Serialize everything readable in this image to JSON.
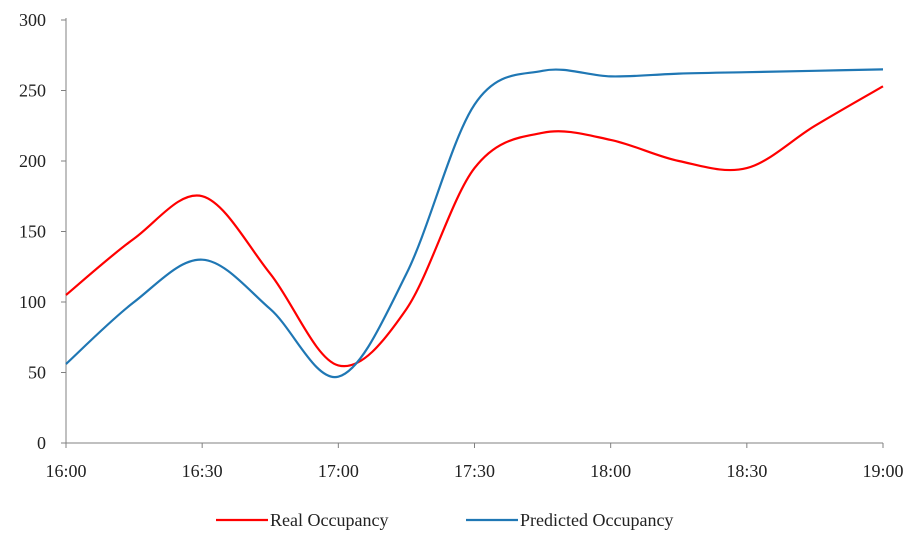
{
  "chart_data": {
    "type": "line",
    "x": [
      "16:00",
      "16:15",
      "16:30",
      "16:45",
      "17:00",
      "17:15",
      "17:30",
      "17:45",
      "18:00",
      "18:15",
      "18:30",
      "18:45",
      "19:00"
    ],
    "x_ticks": [
      "16:00",
      "16:30",
      "17:00",
      "17:30",
      "18:00",
      "18:30",
      "19:00"
    ],
    "y_ticks": [
      0,
      50,
      100,
      150,
      200,
      250,
      300
    ],
    "ylim": [
      0,
      300
    ],
    "grid": false,
    "legend_position": "bottom",
    "series": [
      {
        "name": "Real Occupancy",
        "color": "#ff0000",
        "values": [
          105,
          145,
          175,
          120,
          55,
          95,
          195,
          220,
          215,
          200,
          195,
          225,
          253
        ]
      },
      {
        "name": "Predicted Occupancy",
        "color": "#1f77b4",
        "values": [
          56,
          100,
          130,
          95,
          47,
          120,
          240,
          264,
          260,
          262,
          263,
          264,
          265
        ]
      }
    ]
  }
}
